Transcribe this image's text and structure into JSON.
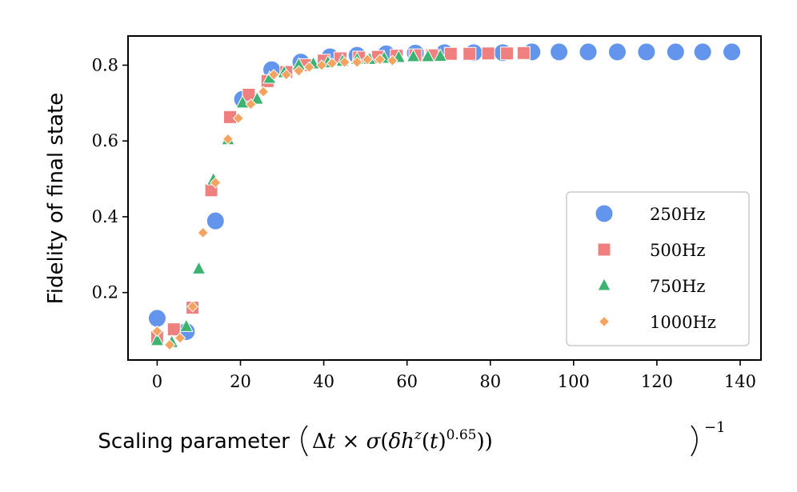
{
  "chart_data": {
    "type": "scatter",
    "title": "",
    "xlabel": "Scaling parameter",
    "xlabel_math": "(Δt × σ(δh^z(t)^0.65))^−1",
    "ylabel": "Fidelity of final state",
    "xlim": [
      -7,
      145
    ],
    "ylim": [
      0.022,
      0.877
    ],
    "xticks": [
      0,
      20,
      40,
      60,
      80,
      100,
      120,
      140
    ],
    "yticks": [
      0.2,
      0.4,
      0.6,
      0.8
    ],
    "grid": false,
    "legend_position": "lower-right",
    "series": [
      {
        "name": "250Hz",
        "marker": "circle",
        "color": "#6495ED",
        "points": [
          {
            "x": 0,
            "y": 0.132
          },
          {
            "x": 7,
            "y": 0.097
          },
          {
            "x": 14,
            "y": 0.389
          },
          {
            "x": 20.5,
            "y": 0.71
          },
          {
            "x": 27.5,
            "y": 0.788
          },
          {
            "x": 34.5,
            "y": 0.808
          },
          {
            "x": 41.5,
            "y": 0.822
          },
          {
            "x": 48,
            "y": 0.826
          },
          {
            "x": 55,
            "y": 0.83
          },
          {
            "x": 62,
            "y": 0.832
          },
          {
            "x": 69,
            "y": 0.833
          },
          {
            "x": 76,
            "y": 0.833
          },
          {
            "x": 83,
            "y": 0.833
          },
          {
            "x": 90,
            "y": 0.835
          },
          {
            "x": 96.5,
            "y": 0.835
          },
          {
            "x": 103.5,
            "y": 0.835
          },
          {
            "x": 110.5,
            "y": 0.835
          },
          {
            "x": 117.5,
            "y": 0.835
          },
          {
            "x": 124.5,
            "y": 0.835
          },
          {
            "x": 131,
            "y": 0.835
          },
          {
            "x": 138,
            "y": 0.835
          }
        ]
      },
      {
        "name": "500Hz",
        "marker": "square",
        "color": "#F08080",
        "points": [
          {
            "x": 0,
            "y": 0.082
          },
          {
            "x": 4,
            "y": 0.103
          },
          {
            "x": 8.5,
            "y": 0.16
          },
          {
            "x": 13,
            "y": 0.47
          },
          {
            "x": 17.5,
            "y": 0.663
          },
          {
            "x": 22,
            "y": 0.722
          },
          {
            "x": 26.5,
            "y": 0.758
          },
          {
            "x": 31,
            "y": 0.782
          },
          {
            "x": 35.5,
            "y": 0.8
          },
          {
            "x": 40,
            "y": 0.812
          },
          {
            "x": 44,
            "y": 0.818
          },
          {
            "x": 48.5,
            "y": 0.82
          },
          {
            "x": 53,
            "y": 0.822
          },
          {
            "x": 57.5,
            "y": 0.825
          },
          {
            "x": 62,
            "y": 0.826
          },
          {
            "x": 66,
            "y": 0.826
          },
          {
            "x": 70.5,
            "y": 0.83
          },
          {
            "x": 75,
            "y": 0.83
          },
          {
            "x": 79.5,
            "y": 0.831
          },
          {
            "x": 84,
            "y": 0.831
          },
          {
            "x": 88,
            "y": 0.832
          }
        ]
      },
      {
        "name": "750Hz",
        "marker": "triangle",
        "color": "#3CB371",
        "points": [
          {
            "x": 0,
            "y": 0.073
          },
          {
            "x": 3.5,
            "y": 0.068
          },
          {
            "x": 7,
            "y": 0.11
          },
          {
            "x": 10,
            "y": 0.262
          },
          {
            "x": 13.5,
            "y": 0.497
          },
          {
            "x": 17,
            "y": 0.603
          },
          {
            "x": 20.5,
            "y": 0.7
          },
          {
            "x": 24,
            "y": 0.71
          },
          {
            "x": 27,
            "y": 0.765
          },
          {
            "x": 30.5,
            "y": 0.78
          },
          {
            "x": 34,
            "y": 0.8
          },
          {
            "x": 37.5,
            "y": 0.803
          },
          {
            "x": 41,
            "y": 0.806
          },
          {
            "x": 44.5,
            "y": 0.81
          },
          {
            "x": 48,
            "y": 0.815
          },
          {
            "x": 51,
            "y": 0.815
          },
          {
            "x": 54.5,
            "y": 0.818
          },
          {
            "x": 58,
            "y": 0.82
          },
          {
            "x": 61.5,
            "y": 0.822
          },
          {
            "x": 65,
            "y": 0.822
          },
          {
            "x": 68,
            "y": 0.823
          }
        ]
      },
      {
        "name": "1000Hz",
        "marker": "diamond",
        "color": "#F4A460",
        "points": [
          {
            "x": 0,
            "y": 0.098
          },
          {
            "x": 3,
            "y": 0.062
          },
          {
            "x": 5.5,
            "y": 0.08
          },
          {
            "x": 8.5,
            "y": 0.163
          },
          {
            "x": 11,
            "y": 0.358
          },
          {
            "x": 14,
            "y": 0.49
          },
          {
            "x": 17,
            "y": 0.605
          },
          {
            "x": 19.5,
            "y": 0.66
          },
          {
            "x": 22.5,
            "y": 0.697
          },
          {
            "x": 25.5,
            "y": 0.73
          },
          {
            "x": 28,
            "y": 0.775
          },
          {
            "x": 31,
            "y": 0.775
          },
          {
            "x": 34,
            "y": 0.785
          },
          {
            "x": 36.5,
            "y": 0.795
          },
          {
            "x": 39.5,
            "y": 0.8
          },
          {
            "x": 42,
            "y": 0.805
          },
          {
            "x": 45,
            "y": 0.808
          },
          {
            "x": 48,
            "y": 0.808
          },
          {
            "x": 50.5,
            "y": 0.815
          },
          {
            "x": 53.5,
            "y": 0.815
          },
          {
            "x": 56.5,
            "y": 0.812
          }
        ]
      }
    ]
  }
}
